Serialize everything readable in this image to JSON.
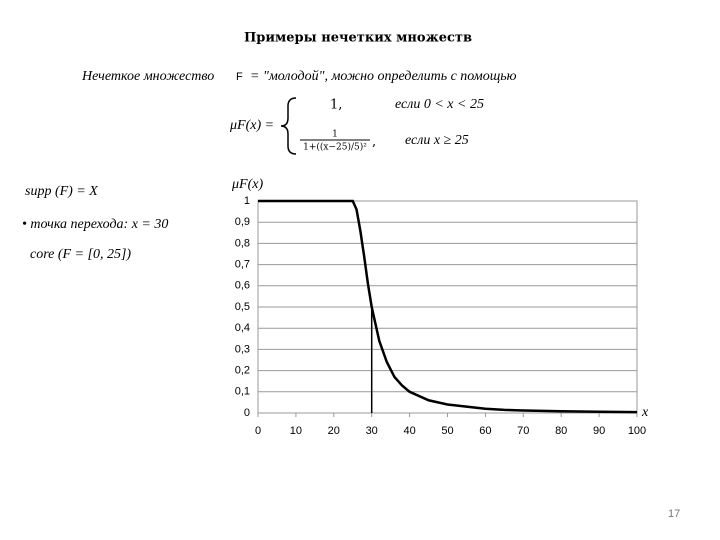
{
  "title": "Примеры нечетких множеств",
  "intro": {
    "before": "Нечеткое множество",
    "set": "F",
    "after": "= \"молодой\", можно определить с помощью"
  },
  "formula": {
    "lhs": "μF(x) =",
    "case1_value": "1,",
    "case1_condition": "если 0 < x < 25",
    "case2_numerator": "1",
    "case2_denominator": "1+((x−25)/5)²",
    "case2_comma": ",",
    "case2_condition": "если x ≥ 25"
  },
  "facts": [
    "supp (F) = X",
    "• точка перехода: x = 30",
    "core (F = [0, 25])"
  ],
  "page_number": "17",
  "chart_data": {
    "type": "line",
    "y_label": "μF(x)",
    "x_label": "x",
    "color": "#000000",
    "grid": true,
    "x": [
      0,
      5,
      10,
      15,
      20,
      25,
      26,
      27,
      28,
      29,
      30,
      32,
      34,
      36,
      38,
      40,
      45,
      50,
      55,
      60,
      65,
      70,
      75,
      80,
      90,
      100
    ],
    "values": [
      1,
      1,
      1,
      1,
      1,
      1,
      0.96,
      0.86,
      0.74,
      0.61,
      0.5,
      0.34,
      0.24,
      0.17,
      0.13,
      0.1,
      0.06,
      0.04,
      0.03,
      0.02,
      0.015,
      0.012,
      0.01,
      0.008,
      0.006,
      0.004
    ],
    "marker": {
      "x": 30,
      "y": 0.5
    },
    "xlim": [
      0,
      100
    ],
    "xticks": [
      0,
      10,
      20,
      30,
      40,
      50,
      60,
      70,
      80,
      90,
      100
    ],
    "ylim": [
      0,
      1
    ],
    "yticks": [
      0,
      {
        "value": 0.1,
        "label": "0,1"
      },
      {
        "value": 0.2,
        "label": "0,2"
      },
      {
        "value": 0.3,
        "label": "0,3"
      },
      {
        "value": 0.4,
        "label": "0,4"
      },
      {
        "value": 0.5,
        "label": "0,5"
      },
      {
        "value": 0.6,
        "label": "0,6"
      },
      {
        "value": 0.7,
        "label": "0,7"
      },
      {
        "value": 0.8,
        "label": "0,8"
      },
      {
        "value": 0.9,
        "label": "0,9"
      },
      1
    ]
  }
}
